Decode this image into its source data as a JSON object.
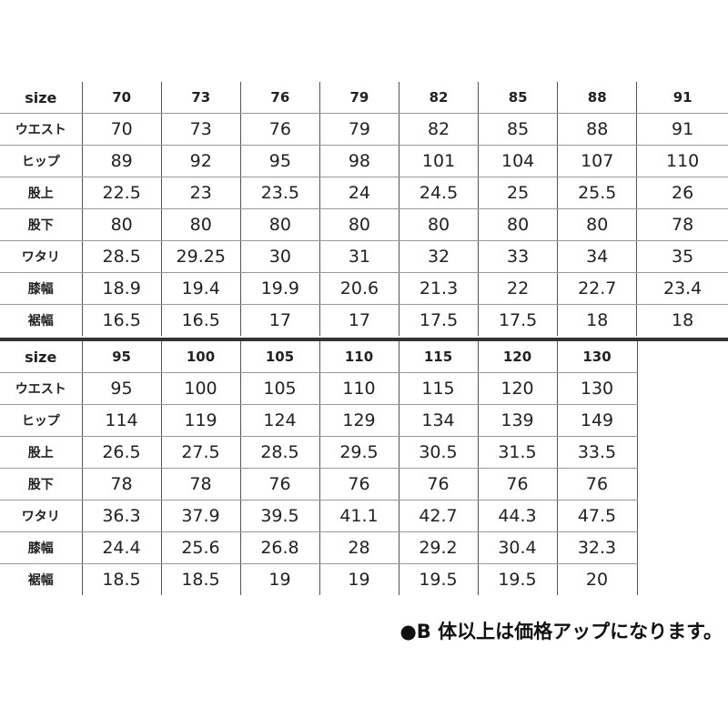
{
  "row_labels": [
    "size",
    "ウエスト",
    "ヒップ",
    "股上",
    "股下",
    "ワタリ",
    "膝幅",
    "裾幅"
  ],
  "table1": [
    [
      "70",
      "73",
      "76",
      "79",
      "82",
      "85",
      "88",
      "91"
    ],
    [
      "70",
      "73",
      "76",
      "79",
      "82",
      "85",
      "88",
      "91"
    ],
    [
      "89",
      "92",
      "95",
      "98",
      "101",
      "104",
      "107",
      "110"
    ],
    [
      "22.5",
      "23",
      "23.5",
      "24",
      "24.5",
      "25",
      "25.5",
      "26"
    ],
    [
      "80",
      "80",
      "80",
      "80",
      "80",
      "80",
      "80",
      "78"
    ],
    [
      "28.5",
      "29.25",
      "30",
      "31",
      "32",
      "33",
      "34",
      "35"
    ],
    [
      "18.9",
      "19.4",
      "19.9",
      "20.6",
      "21.3",
      "22",
      "22.7",
      "23.4"
    ],
    [
      "16.5",
      "16.5",
      "17",
      "17",
      "17.5",
      "17.5",
      "18",
      "18"
    ]
  ],
  "table2": [
    [
      "95",
      "100",
      "105",
      "110",
      "115",
      "120",
      "130"
    ],
    [
      "95",
      "100",
      "105",
      "110",
      "115",
      "120",
      "130"
    ],
    [
      "114",
      "119",
      "124",
      "129",
      "134",
      "139",
      "149"
    ],
    [
      "26.5",
      "27.5",
      "28.5",
      "29.5",
      "30.5",
      "31.5",
      "33.5"
    ],
    [
      "78",
      "78",
      "76",
      "76",
      "76",
      "76",
      "76"
    ],
    [
      "36.3",
      "37.9",
      "39.5",
      "41.1",
      "42.7",
      "44.3",
      "47.5"
    ],
    [
      "24.4",
      "25.6",
      "26.8",
      "28",
      "29.2",
      "30.4",
      "32.3"
    ],
    [
      "18.5",
      "18.5",
      "19",
      "19",
      "19.5",
      "19.5",
      "20"
    ]
  ],
  "note": "●B 体以上は価格アップになります。"
}
